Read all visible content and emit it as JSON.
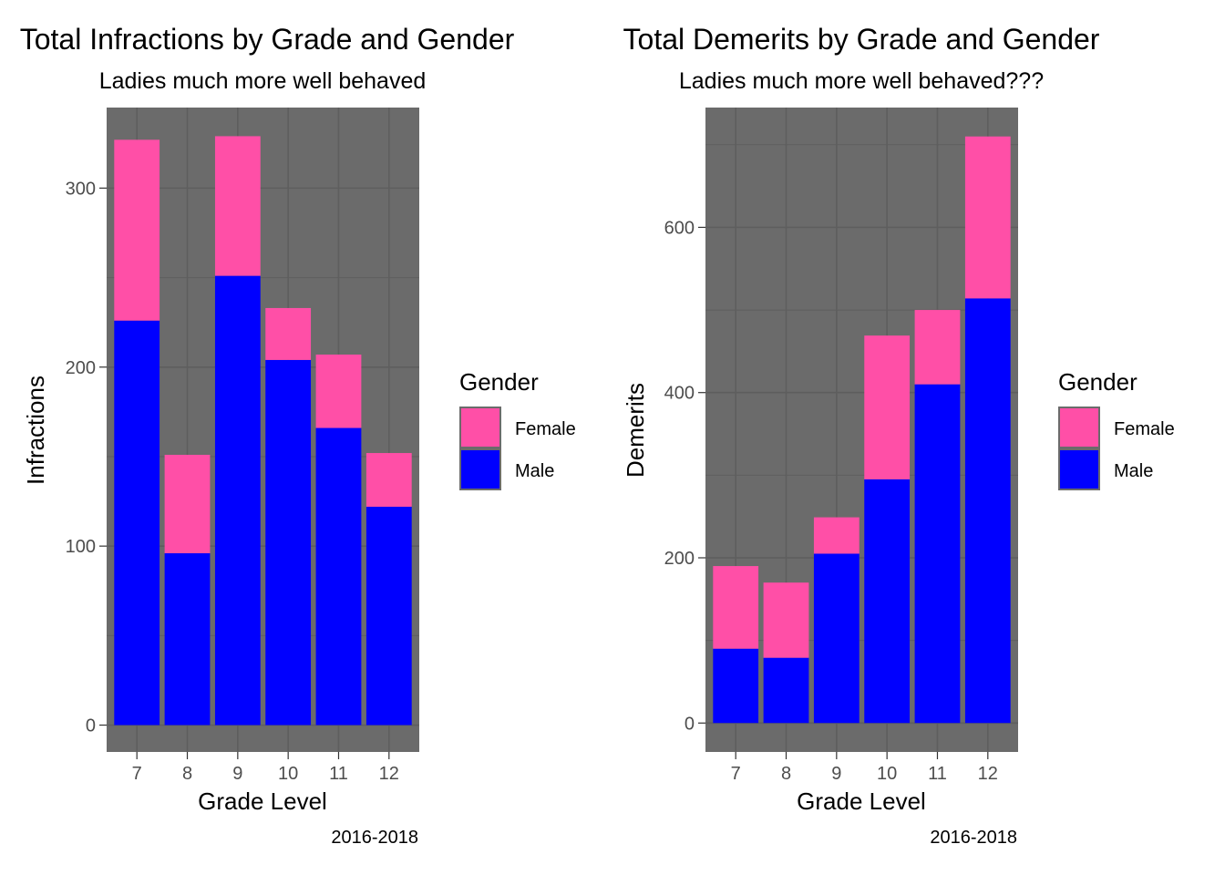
{
  "colors": {
    "Female": "#ff4fa7",
    "Male": "#0000ff",
    "panel": "#6b6b6b",
    "grid": "#5e5e5e"
  },
  "chart_data": [
    {
      "type": "bar",
      "stacked": true,
      "title": "Total Infractions by Grade and Gender",
      "subtitle": "Ladies much more well behaved",
      "xlabel": "Grade Level",
      "ylabel": "Infractions",
      "caption": "2016-2018",
      "categories": [
        "7",
        "8",
        "9",
        "10",
        "11",
        "12"
      ],
      "yticks": [
        0,
        100,
        200,
        300
      ],
      "ylim": [
        -15,
        345
      ],
      "legend": {
        "title": "Gender",
        "entries": [
          "Female",
          "Male"
        ],
        "position": "right"
      },
      "series": [
        {
          "name": "Male",
          "values": [
            226,
            96,
            251,
            204,
            166,
            122
          ]
        },
        {
          "name": "Female",
          "values": [
            101,
            55,
            78,
            29,
            41,
            30
          ]
        }
      ]
    },
    {
      "type": "bar",
      "stacked": true,
      "title": "Total Demerits by Grade and Gender",
      "subtitle": "Ladies much more well behaved???",
      "xlabel": "Grade Level",
      "ylabel": "Demerits",
      "caption": "2016-2018",
      "categories": [
        "7",
        "8",
        "9",
        "10",
        "11",
        "12"
      ],
      "yticks": [
        0,
        200,
        400,
        600
      ],
      "ylim": [
        -35,
        745
      ],
      "legend": {
        "title": "Gender",
        "entries": [
          "Female",
          "Male"
        ],
        "position": "right"
      },
      "series": [
        {
          "name": "Male",
          "values": [
            90,
            79,
            205,
            295,
            410,
            514
          ]
        },
        {
          "name": "Female",
          "values": [
            100,
            91,
            44,
            174,
            90,
            196
          ]
        }
      ]
    }
  ]
}
